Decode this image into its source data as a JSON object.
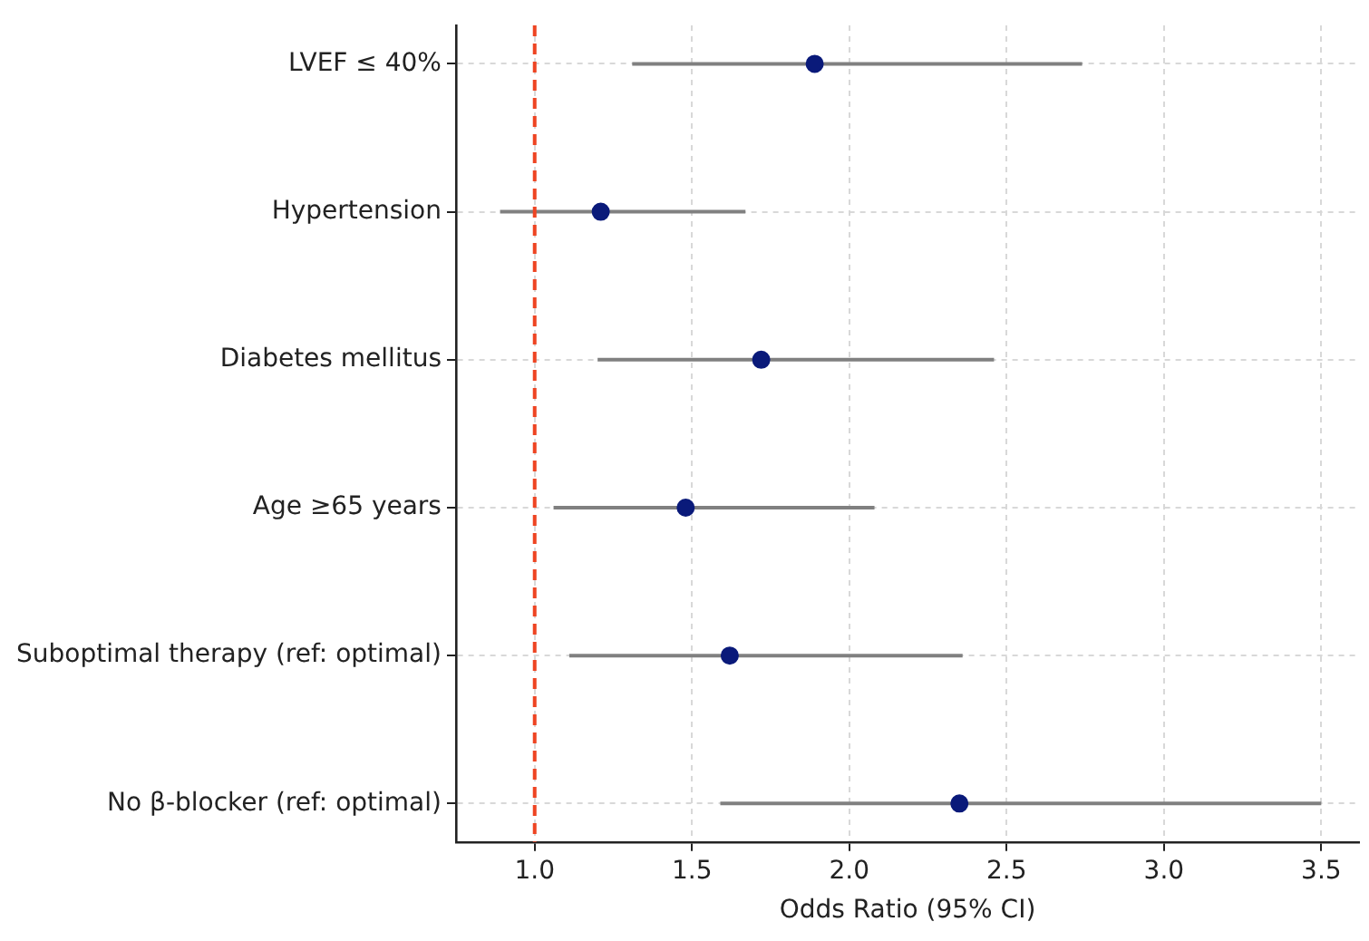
{
  "chart_data": {
    "type": "scatter",
    "orientation": "horizontal",
    "categories": [
      "LVEF ≤ 40%",
      "Hypertension",
      "Diabetes mellitus",
      "Age ≥65 years",
      "Suboptimal therapy (ref: optimal)",
      "No β-blocker (ref: optimal)"
    ],
    "values": [
      1.89,
      1.21,
      1.72,
      1.48,
      1.62,
      2.35
    ],
    "errors": [
      [
        1.31,
        2.74
      ],
      [
        0.89,
        1.67
      ],
      [
        1.2,
        2.46
      ],
      [
        1.06,
        2.08
      ],
      [
        1.11,
        2.36
      ],
      [
        1.59,
        3.5
      ]
    ],
    "color": "#0a1a7a",
    "marker": "circle",
    "xlabel": "Odds Ratio (95% CI)",
    "xlim": [
      0.75,
      3.62
    ],
    "xticks": [
      {
        "value": 1,
        "label": "1.0"
      },
      1.5,
      {
        "value": 2,
        "label": "2.0"
      },
      2.5,
      {
        "value": 3,
        "label": "3.0"
      },
      3.5
    ],
    "ref_lines": [
      {
        "axis": "x",
        "value": 1,
        "color": "#ee4422",
        "line_style": "dashed"
      }
    ],
    "grid": true
  }
}
